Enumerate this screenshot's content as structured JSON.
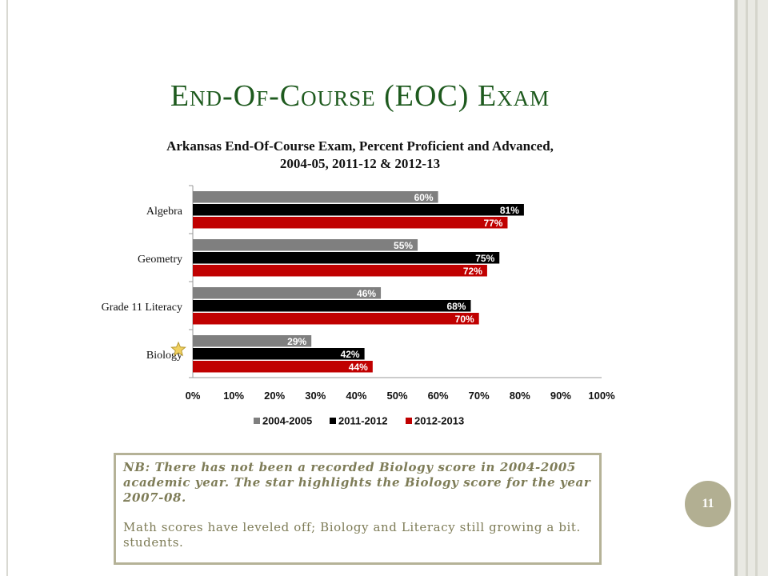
{
  "slide": {
    "title": "End-Of-Course (EOC) Exam",
    "page_number": "11"
  },
  "colors": {
    "title": "#1e5a1e",
    "series_2004_2005": "#7f7f7f",
    "series_2011_2012": "#000000",
    "series_2012_2013": "#c00000",
    "note_text": "#7e7c57",
    "badge": "#b2af92"
  },
  "chart_data": {
    "type": "bar",
    "orientation": "horizontal",
    "title_line1": "Arkansas End-Of-Course Exam, Percent Proficient and Advanced,",
    "title_line2": "2004-05, 2011-12 & 2012-13",
    "categories": [
      "Algebra",
      "Geometry",
      "Grade 11 Literacy",
      "Biology"
    ],
    "series": [
      {
        "name": "2004-2005",
        "values": [
          60,
          55,
          46,
          29
        ],
        "labels": [
          "60%",
          "55%",
          "46%",
          "29%"
        ]
      },
      {
        "name": "2011-2012",
        "values": [
          81,
          75,
          68,
          42
        ],
        "labels": [
          "81%",
          "75%",
          "68%",
          "42%"
        ]
      },
      {
        "name": "2012-2013",
        "values": [
          77,
          72,
          70,
          44
        ],
        "labels": [
          "77%",
          "72%",
          "70%",
          "44%"
        ]
      }
    ],
    "xlim": [
      0,
      100
    ],
    "xticks": [
      "0%",
      "10%",
      "20%",
      "30%",
      "40%",
      "50%",
      "60%",
      "70%",
      "80%",
      "90%",
      "100%"
    ],
    "legend_position": "bottom",
    "grid": false,
    "annotation": {
      "type": "star-icon",
      "category": "Biology"
    }
  },
  "note": {
    "emphasis": "NB: There has not been a recorded Biology score in 2004-2005 academic year. The star highlights the Biology score for the year 2007-08.",
    "body": "Math scores have leveled off; Biology and Literacy still growing a bit. students."
  }
}
